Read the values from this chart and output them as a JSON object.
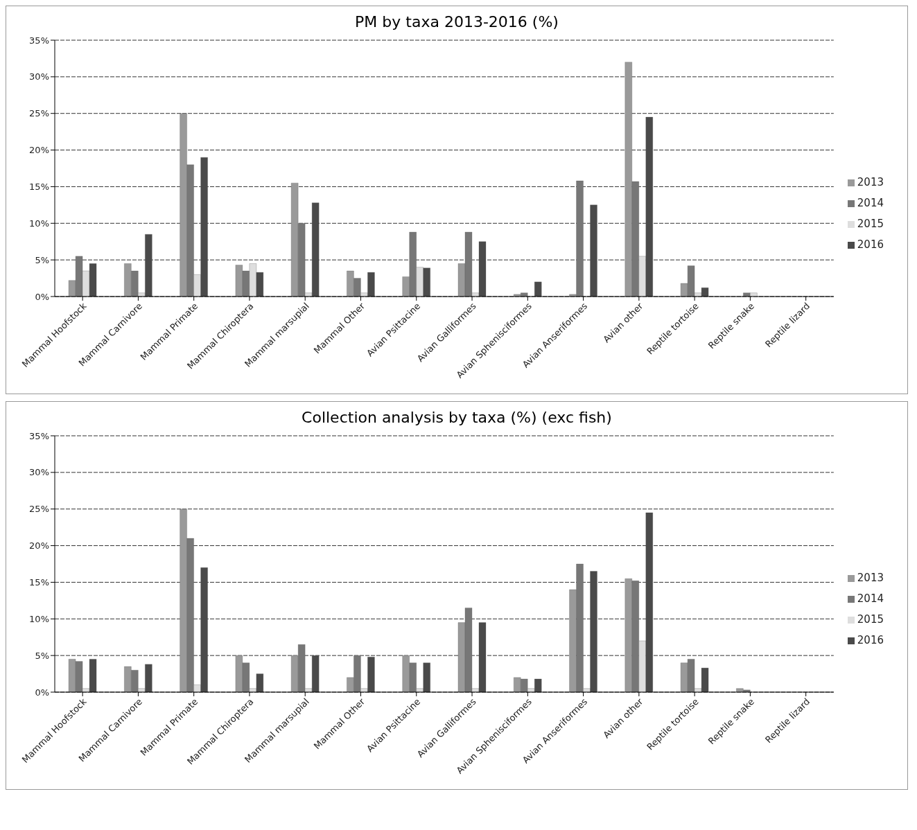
{
  "chart_data": [
    {
      "type": "bar",
      "title": "PM by taxa 2013-2016 (%)",
      "categories": [
        "Mammal Hoofstock",
        "Mammal Carnivore",
        "Mammal Primate",
        "Mammal Chiroptera",
        "Mammal marsupial",
        "Mammal Other",
        "Avian Psittacine",
        "Avian Galliformes",
        "Avian Sphenisciformes",
        "Avian Anseriformes",
        "Avian other",
        "Reptile tortoise",
        "Reptile snake",
        "Reptile lizard"
      ],
      "series": [
        {
          "name": "2013",
          "color": "#9a9a9a",
          "values": [
            2.2,
            4.5,
            25,
            4.3,
            15.5,
            3.5,
            2.7,
            4.5,
            0.3,
            0.3,
            32,
            1.8,
            0,
            0
          ]
        },
        {
          "name": "2014",
          "color": "#777777",
          "values": [
            5.5,
            3.5,
            18,
            3.5,
            10,
            2.5,
            8.8,
            8.8,
            0.5,
            15.8,
            15.7,
            4.2,
            0.5,
            0
          ]
        },
        {
          "name": "2015",
          "color": "#dedede",
          "values": [
            3.5,
            0.5,
            3,
            4.5,
            0.5,
            0.5,
            4,
            0.5,
            0,
            0,
            5.5,
            0.5,
            0.5,
            0
          ]
        },
        {
          "name": "2016",
          "color": "#4a4a4a",
          "values": [
            4.5,
            8.5,
            19,
            3.3,
            12.8,
            3.3,
            3.9,
            7.5,
            2,
            12.5,
            24.5,
            1.2,
            0,
            0
          ]
        }
      ],
      "ylim": [
        0,
        35
      ],
      "yticks": [
        {
          "value": 0,
          "label": "0%"
        },
        {
          "value": 5,
          "label": "5%"
        },
        {
          "value": 10,
          "label": "10%"
        },
        {
          "value": 15,
          "label": "15%"
        },
        {
          "value": 20,
          "label": "20%"
        },
        {
          "value": 25,
          "label": "25%"
        },
        {
          "value": 30,
          "label": "30%"
        },
        {
          "value": 35,
          "label": "35%"
        }
      ],
      "grid": "y",
      "legend": "right"
    },
    {
      "type": "bar",
      "title": "Collection analysis by taxa (%) (exc fish)",
      "categories": [
        "Mammal Hoofstock",
        "Mammal Carnivore",
        "Mammal Primate",
        "Mammal Chiroptera",
        "Mammal marsupial",
        "Mammal Other",
        "Avian Psittacine",
        "Avian Galliformes",
        "Avian Sphenisciformes",
        "Avian Anseriformes",
        "Avian other",
        "Reptile tortoise",
        "Reptile snake",
        "Reptile lizard"
      ],
      "series": [
        {
          "name": "2013",
          "color": "#9a9a9a",
          "values": [
            4.5,
            3.5,
            25,
            5,
            5,
            2,
            5,
            9.5,
            2,
            14,
            15.5,
            4,
            0.5,
            0
          ]
        },
        {
          "name": "2014",
          "color": "#777777",
          "values": [
            4.2,
            3,
            21,
            4,
            6.5,
            5,
            4,
            11.5,
            1.8,
            17.5,
            15.2,
            4.5,
            0.3,
            0
          ]
        },
        {
          "name": "2015",
          "color": "#dedede",
          "values": [
            0.5,
            0.5,
            1,
            0.5,
            0.5,
            0.5,
            0.5,
            0.5,
            0.5,
            0.5,
            7,
            0.5,
            0,
            0
          ]
        },
        {
          "name": "2016",
          "color": "#4a4a4a",
          "values": [
            4.5,
            3.8,
            17,
            2.5,
            5,
            4.8,
            4,
            9.5,
            1.8,
            16.5,
            24.5,
            3.3,
            0,
            0
          ]
        }
      ],
      "ylim": [
        0,
        35
      ],
      "yticks": [
        {
          "value": 0,
          "label": "0%"
        },
        {
          "value": 5,
          "label": "5%"
        },
        {
          "value": 10,
          "label": "10%"
        },
        {
          "value": 15,
          "label": "15%"
        },
        {
          "value": 20,
          "label": "20%"
        },
        {
          "value": 25,
          "label": "25%"
        },
        {
          "value": 30,
          "label": "30%"
        },
        {
          "value": 35,
          "label": "35%"
        }
      ],
      "grid": "y",
      "legend": "right"
    }
  ]
}
